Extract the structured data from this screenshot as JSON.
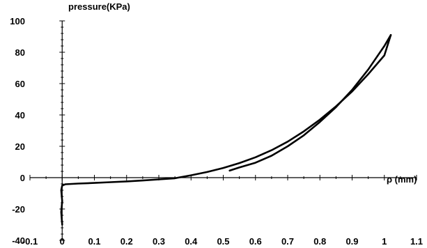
{
  "chart_data": {
    "type": "line",
    "title": "",
    "ylabel": "pressure(KPa)",
    "xlabel": "ρ  (mm)",
    "xlim": [
      -0.1,
      1.1
    ],
    "ylim": [
      -40,
      100
    ],
    "x_ticks": [
      -0.1,
      0,
      0.1,
      0.2,
      0.3,
      0.4,
      0.5,
      0.6,
      0.7,
      0.8,
      0.9,
      1,
      1.1
    ],
    "x_tick_labels": [
      "-0.1",
      "0",
      "0.1",
      "0.2",
      "0.3",
      "0.4",
      "0.5",
      "0.6",
      "0.7",
      "0.8",
      "0.9",
      "1",
      "1.1"
    ],
    "y_ticks": [
      -40,
      -20,
      0,
      20,
      40,
      60,
      80,
      100
    ],
    "y_tick_labels": [
      "-40",
      "-20",
      "0",
      "20",
      "40",
      "60",
      "80",
      "100"
    ],
    "grid": false,
    "legend": "none",
    "series": [
      {
        "values": [
          {
            "x": 0.0,
            "y": -30
          },
          {
            "x": -0.003,
            "y": -22
          },
          {
            "x": 0.0,
            "y": -15
          },
          {
            "x": -0.003,
            "y": -8
          },
          {
            "x": 0.0,
            "y": -5
          },
          {
            "x": 0.01,
            "y": -4.2
          },
          {
            "x": 0.05,
            "y": -3.8
          },
          {
            "x": 0.1,
            "y": -3.4
          },
          {
            "x": 0.15,
            "y": -2.9
          },
          {
            "x": 0.2,
            "y": -2.4
          },
          {
            "x": 0.25,
            "y": -1.8
          },
          {
            "x": 0.3,
            "y": -1.1
          },
          {
            "x": 0.35,
            "y": -0.4
          },
          {
            "x": 0.4,
            "y": 1.5
          },
          {
            "x": 0.45,
            "y": 3.6
          },
          {
            "x": 0.5,
            "y": 6.2
          },
          {
            "x": 0.55,
            "y": 9.3
          },
          {
            "x": 0.6,
            "y": 13
          },
          {
            "x": 0.65,
            "y": 17.5
          },
          {
            "x": 0.7,
            "y": 23
          },
          {
            "x": 0.75,
            "y": 29.5
          },
          {
            "x": 0.8,
            "y": 37
          },
          {
            "x": 0.85,
            "y": 45.5
          },
          {
            "x": 0.9,
            "y": 55
          },
          {
            "x": 0.95,
            "y": 66
          },
          {
            "x": 1.0,
            "y": 78
          },
          {
            "x": 1.02,
            "y": 91
          }
        ]
      },
      {
        "values": [
          {
            "x": 1.02,
            "y": 91
          },
          {
            "x": 1.0,
            "y": 84
          },
          {
            "x": 0.95,
            "y": 69
          },
          {
            "x": 0.9,
            "y": 56
          },
          {
            "x": 0.85,
            "y": 45
          },
          {
            "x": 0.8,
            "y": 35.5
          },
          {
            "x": 0.75,
            "y": 27
          },
          {
            "x": 0.7,
            "y": 20
          },
          {
            "x": 0.65,
            "y": 14
          },
          {
            "x": 0.6,
            "y": 9.5
          },
          {
            "x": 0.55,
            "y": 6.5
          },
          {
            "x": 0.52,
            "y": 4.5
          }
        ]
      }
    ]
  }
}
